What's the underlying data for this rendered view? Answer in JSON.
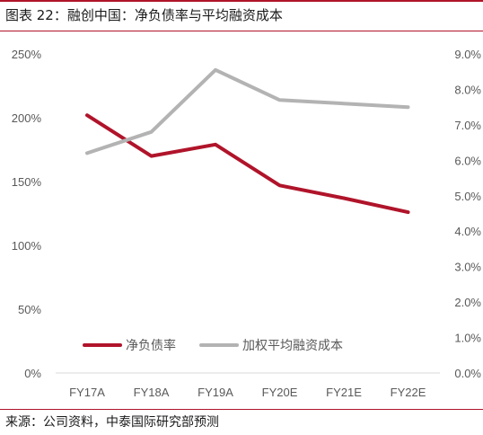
{
  "header": {
    "title": "图表 22：融创中国：净负债率与平均融资成本"
  },
  "footer": {
    "source": "来源：公司资料，中泰国际研究部预测"
  },
  "chart_data": {
    "type": "line",
    "title": "图表 22：融创中国：净负债率与平均融资成本",
    "categories": [
      "FY17A",
      "FY18A",
      "FY19A",
      "FY20E",
      "FY21E",
      "FY22E"
    ],
    "y_left": {
      "ylim": [
        0,
        2.5
      ],
      "ticks": [
        0,
        0.5,
        1.0,
        1.5,
        2.0,
        2.5
      ],
      "tick_labels": [
        "0%",
        "50%",
        "100%",
        "150%",
        "200%",
        "250%"
      ]
    },
    "y_right": {
      "ylim": [
        0,
        0.09
      ],
      "ticks": [
        0,
        0.01,
        0.02,
        0.03,
        0.04,
        0.05,
        0.06,
        0.07,
        0.08,
        0.09
      ],
      "tick_labels": [
        "0.0%",
        "1.0%",
        "2.0%",
        "3.0%",
        "4.0%",
        "5.0%",
        "6.0%",
        "7.0%",
        "8.0%",
        "9.0%"
      ]
    },
    "series": [
      {
        "name": "净负债率",
        "axis": "left",
        "color": "#b0142a",
        "values": [
          2.02,
          1.7,
          1.79,
          1.47,
          1.37,
          1.26
        ]
      },
      {
        "name": "加权平均融资成本",
        "axis": "right",
        "color": "#b3b3b3",
        "values": [
          0.062,
          0.068,
          0.0855,
          0.077,
          0.076,
          0.075
        ]
      }
    ],
    "legend_position": "bottom-inside",
    "grid": false
  }
}
